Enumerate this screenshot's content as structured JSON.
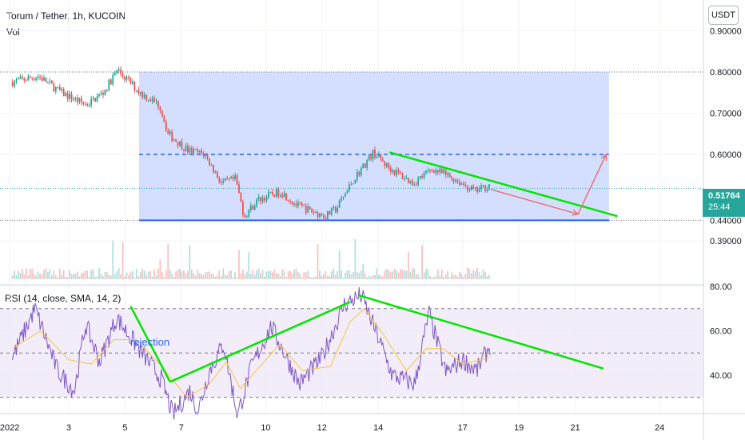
{
  "header": {
    "symbol": "Torum / Tether, 1h, KUCOIN",
    "volume_label": "Vol",
    "rsi_label": "RSI (14, close, SMA, 14, 2)",
    "currency_button": "USDT"
  },
  "price_marker": {
    "value": "0.51764",
    "countdown": "25:44"
  },
  "annotation": "rejection",
  "colors": {
    "up": "#26a69a",
    "down": "#ef5350",
    "zone_fill": "#cfdcff",
    "zone_border": "#2962ff",
    "trendline": "#00e600",
    "arrow": "#e57373",
    "rsi_line": "#7e57c2",
    "rsi_ma": "#f5c343",
    "rsi_band": "#ede7f6",
    "price_badge": "#26a69a"
  },
  "chart_data": [
    {
      "type": "candlestick",
      "title": "Torum / Tether, 1h, KUCOIN",
      "y_axis_ticks": [
        "0.90000",
        "0.80000",
        "0.70000",
        "0.60000",
        "0.44000",
        "0.39000"
      ],
      "ylim": [
        0.38,
        1.0
      ],
      "x_axis_ticks": [
        "2022",
        "3",
        "5",
        "7",
        "10",
        "12",
        "14",
        "17",
        "19",
        "21",
        "24"
      ],
      "price_path": [
        {
          "x": 0.0,
          "y": 0.775
        },
        {
          "x": 1.0,
          "y": 0.79
        },
        {
          "x": 1.8,
          "y": 0.75
        },
        {
          "x": 2.7,
          "y": 0.72
        },
        {
          "x": 3.3,
          "y": 0.75
        },
        {
          "x": 3.8,
          "y": 0.805
        },
        {
          "x": 4.6,
          "y": 0.75
        },
        {
          "x": 5.3,
          "y": 0.72
        },
        {
          "x": 5.6,
          "y": 0.65
        },
        {
          "x": 6.3,
          "y": 0.61
        },
        {
          "x": 6.9,
          "y": 0.6
        },
        {
          "x": 7.5,
          "y": 0.53
        },
        {
          "x": 8.0,
          "y": 0.54
        },
        {
          "x": 8.3,
          "y": 0.45
        },
        {
          "x": 8.8,
          "y": 0.49
        },
        {
          "x": 9.6,
          "y": 0.51
        },
        {
          "x": 10.2,
          "y": 0.475
        },
        {
          "x": 11.2,
          "y": 0.45
        },
        {
          "x": 11.6,
          "y": 0.47
        },
        {
          "x": 12.2,
          "y": 0.54
        },
        {
          "x": 12.9,
          "y": 0.605
        },
        {
          "x": 13.4,
          "y": 0.57
        },
        {
          "x": 14.3,
          "y": 0.53
        },
        {
          "x": 15.0,
          "y": 0.565
        },
        {
          "x": 15.8,
          "y": 0.54
        },
        {
          "x": 16.5,
          "y": 0.51
        },
        {
          "x": 17.0,
          "y": 0.525
        }
      ],
      "drawings": {
        "range_box": {
          "top": 0.8,
          "mid": 0.6,
          "bottom": 0.44,
          "x_start": 4.5,
          "x_end": 21.2
        },
        "descending_trendline": [
          {
            "x": 13.4,
            "y": 0.605
          },
          {
            "x": 21.5,
            "y": 0.45
          }
        ],
        "projection_down": [
          {
            "x": 17.0,
            "y": 0.515
          },
          {
            "x": 20.1,
            "y": 0.455
          }
        ],
        "projection_up": [
          {
            "x": 20.1,
            "y": 0.455
          },
          {
            "x": 21.1,
            "y": 0.6
          }
        ],
        "current_price": 0.51764
      }
    },
    {
      "type": "line",
      "title": "RSI (14, close, SMA, 14, 2)",
      "y_axis_ticks": [
        "80.00",
        "60.00",
        "40.00"
      ],
      "ylim": [
        18,
        84
      ],
      "bands": {
        "upper": 70,
        "middle": 50,
        "lower": 30
      },
      "rsi_path": [
        {
          "x": 0.0,
          "y": 48
        },
        {
          "x": 0.8,
          "y": 70
        },
        {
          "x": 1.6,
          "y": 42
        },
        {
          "x": 2.2,
          "y": 33
        },
        {
          "x": 2.6,
          "y": 63
        },
        {
          "x": 3.1,
          "y": 46
        },
        {
          "x": 3.7,
          "y": 66
        },
        {
          "x": 4.2,
          "y": 57
        },
        {
          "x": 5.3,
          "y": 38
        },
        {
          "x": 5.7,
          "y": 22
        },
        {
          "x": 6.3,
          "y": 33
        },
        {
          "x": 6.6,
          "y": 24
        },
        {
          "x": 7.0,
          "y": 42
        },
        {
          "x": 7.5,
          "y": 54
        },
        {
          "x": 8.0,
          "y": 22
        },
        {
          "x": 8.5,
          "y": 44
        },
        {
          "x": 9.2,
          "y": 62
        },
        {
          "x": 10.2,
          "y": 36
        },
        {
          "x": 11.0,
          "y": 48
        },
        {
          "x": 11.8,
          "y": 72
        },
        {
          "x": 12.4,
          "y": 76
        },
        {
          "x": 13.0,
          "y": 57
        },
        {
          "x": 13.5,
          "y": 40
        },
        {
          "x": 14.3,
          "y": 36
        },
        {
          "x": 14.8,
          "y": 68
        },
        {
          "x": 15.4,
          "y": 41
        },
        {
          "x": 16.0,
          "y": 47
        },
        {
          "x": 16.5,
          "y": 42
        },
        {
          "x": 17.0,
          "y": 54
        }
      ],
      "rsi_ma_path": [
        {
          "x": 0.0,
          "y": 52
        },
        {
          "x": 1.0,
          "y": 60
        },
        {
          "x": 2.0,
          "y": 47
        },
        {
          "x": 2.8,
          "y": 45
        },
        {
          "x": 3.6,
          "y": 56
        },
        {
          "x": 4.4,
          "y": 56
        },
        {
          "x": 5.3,
          "y": 44
        },
        {
          "x": 6.2,
          "y": 30
        },
        {
          "x": 7.0,
          "y": 36
        },
        {
          "x": 7.6,
          "y": 46
        },
        {
          "x": 8.1,
          "y": 34
        },
        {
          "x": 8.8,
          "y": 44
        },
        {
          "x": 9.5,
          "y": 54
        },
        {
          "x": 10.3,
          "y": 42
        },
        {
          "x": 11.3,
          "y": 44
        },
        {
          "x": 12.0,
          "y": 64
        },
        {
          "x": 12.5,
          "y": 70
        },
        {
          "x": 13.2,
          "y": 58
        },
        {
          "x": 14.0,
          "y": 42
        },
        {
          "x": 14.7,
          "y": 52
        },
        {
          "x": 15.3,
          "y": 52
        },
        {
          "x": 16.0,
          "y": 45
        },
        {
          "x": 17.0,
          "y": 48
        }
      ],
      "drawings": {
        "drop_line": [
          {
            "x": 4.2,
            "y": 71
          },
          {
            "x": 5.6,
            "y": 37
          }
        ],
        "rising_line": [
          {
            "x": 5.6,
            "y": 37
          },
          {
            "x": 12.0,
            "y": 73
          }
        ],
        "falling_line": [
          {
            "x": 12.3,
            "y": 76
          },
          {
            "x": 21.0,
            "y": 43
          }
        ]
      }
    }
  ]
}
